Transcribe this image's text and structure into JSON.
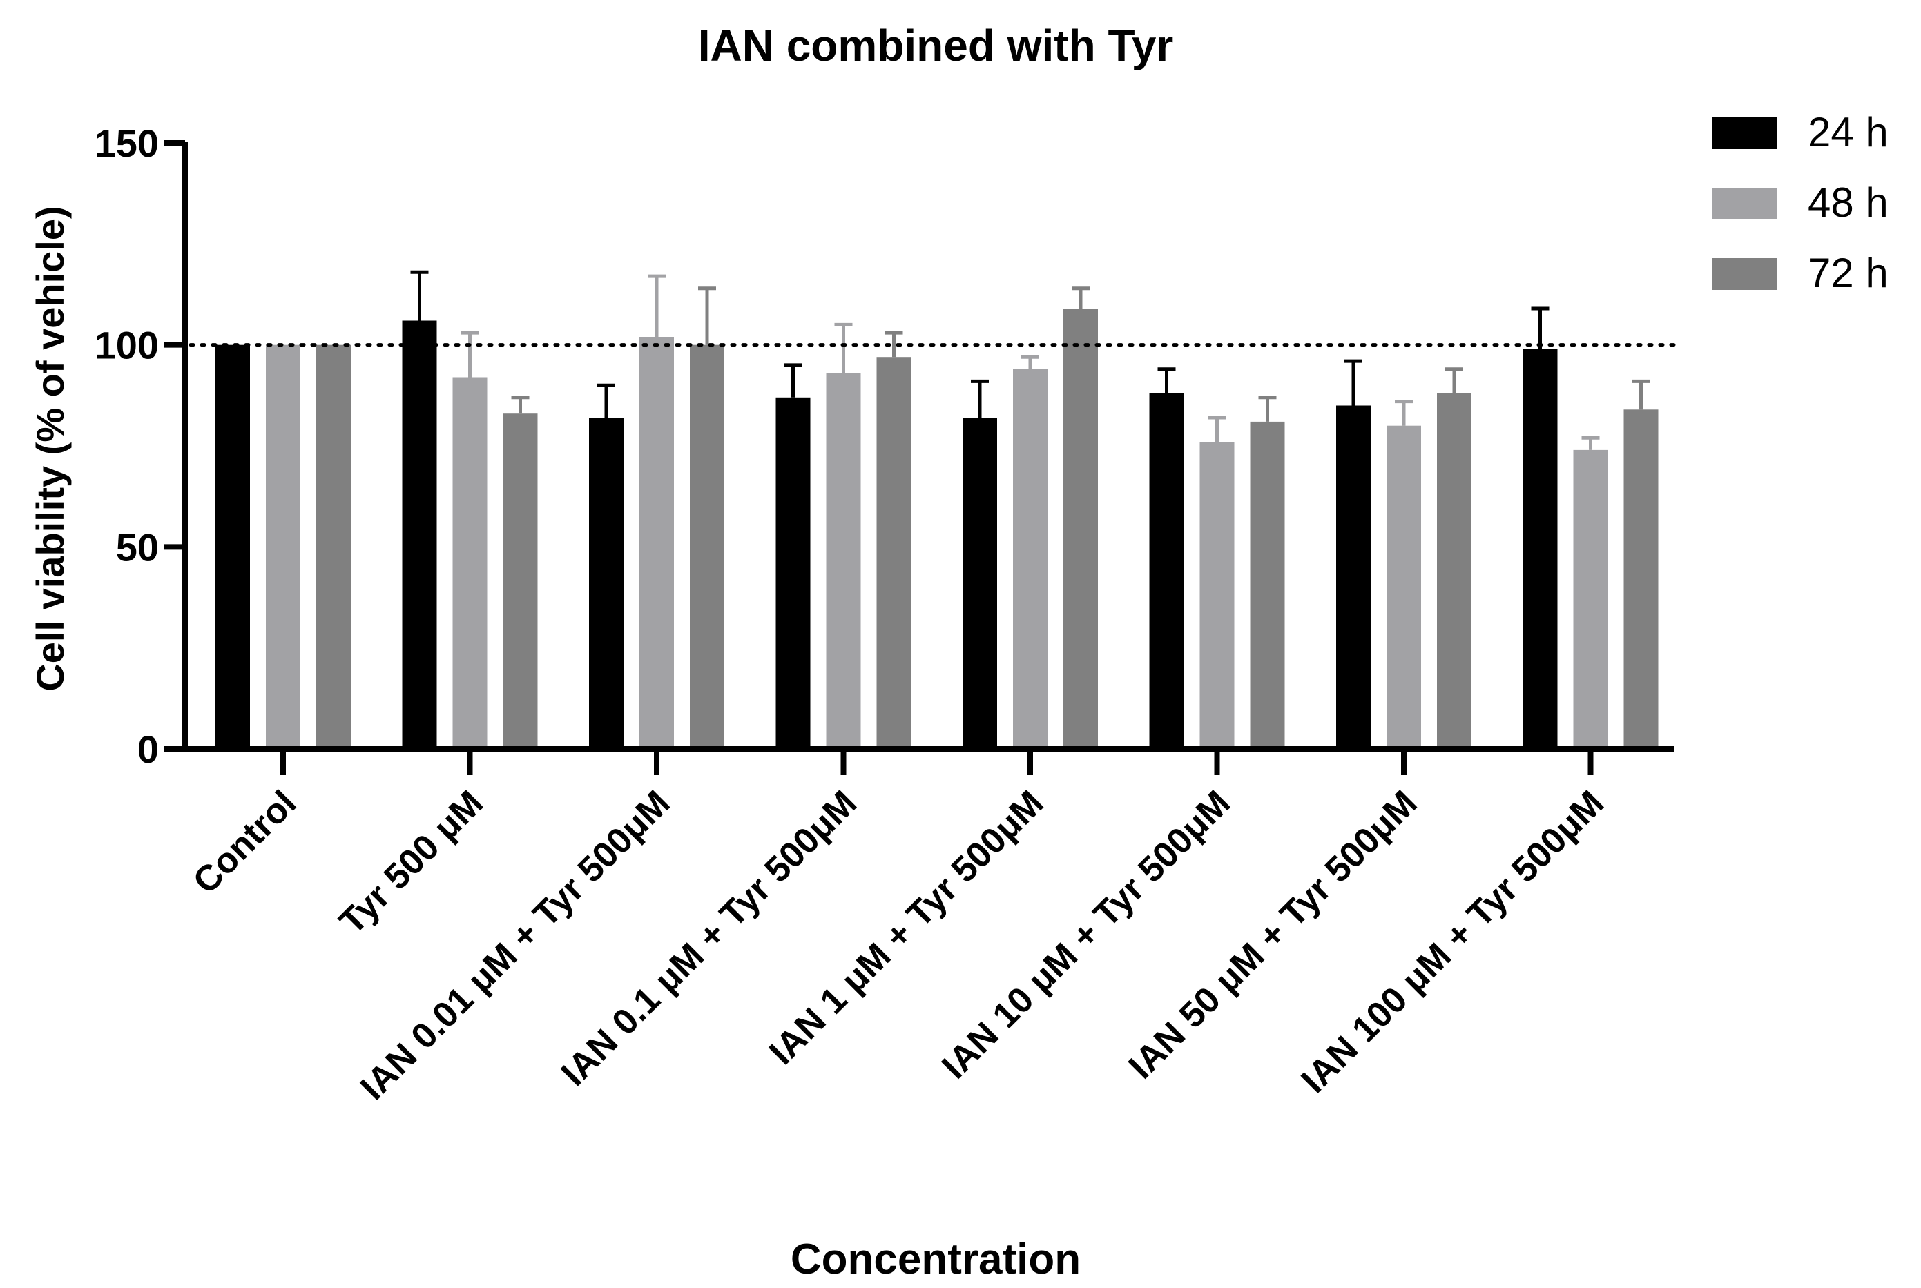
{
  "chart_data": {
    "type": "bar",
    "title": "IAN combined with Tyr",
    "xlabel": "Concentration",
    "ylabel": "Cell viability (% of vehicle)",
    "ylim": [
      0,
      150
    ],
    "yticks": [
      0,
      50,
      100,
      150
    ],
    "reference_line": 100,
    "categories": [
      "Control",
      "Tyr 500 μM",
      "IAN 0.01 μM + Tyr 500μM",
      "IAN 0.1 μM + Tyr 500μM",
      "IAN 1 μM + Tyr 500μM",
      "IAN 10 μM + Tyr 500μM",
      "IAN 50 μM + Tyr 500μM",
      "IAN 100 μM + Tyr 500μM"
    ],
    "series": [
      {
        "name": "24 h",
        "color": "#000000",
        "values": [
          100,
          106,
          82,
          87,
          82,
          88,
          85,
          99
        ],
        "errors": [
          0,
          12,
          8,
          8,
          9,
          6,
          11,
          10
        ]
      },
      {
        "name": "48 h",
        "color": "#a2a2a5",
        "values": [
          100,
          92,
          102,
          93,
          94,
          76,
          80,
          74
        ],
        "errors": [
          0,
          11,
          15,
          12,
          3,
          6,
          6,
          3
        ]
      },
      {
        "name": "72 h",
        "color": "#808080",
        "values": [
          100,
          83,
          100,
          97,
          109,
          81,
          88,
          84
        ],
        "errors": [
          0,
          4,
          14,
          6,
          5,
          6,
          6,
          7
        ]
      }
    ],
    "legend_position": "top-right",
    "grid": false
  }
}
